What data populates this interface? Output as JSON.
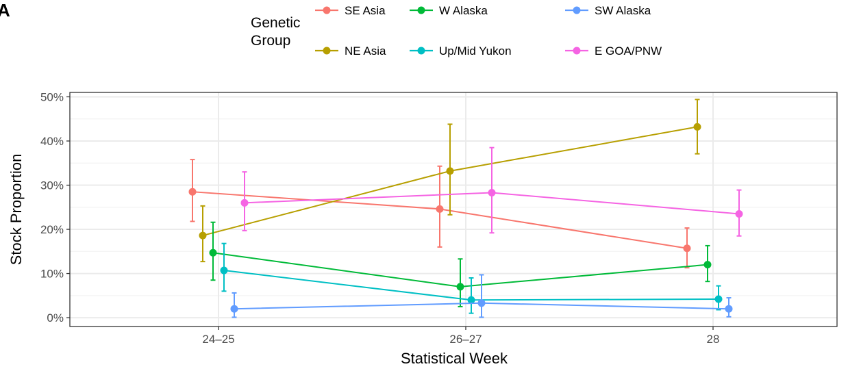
{
  "panel_tag": "A",
  "legend": {
    "title_line1": "Genetic",
    "title_line2": "Group"
  },
  "colors": {
    "SE Asia": "#F8766D",
    "NE Asia": "#B79F00",
    "W Alaska": "#00BA38",
    "Up/Mid Yukon": "#00BFC4",
    "SW Alaska": "#619CFF",
    "E GOA/PNW": "#F564E3"
  },
  "chart_data": {
    "type": "line",
    "xlabel": "Statistical Week",
    "ylabel": "Stock Proportion",
    "categories": [
      "24–25",
      "26–27",
      "28"
    ],
    "ylim": [
      -0.02,
      0.51
    ],
    "yticks": [
      0,
      0.1,
      0.2,
      0.3,
      0.4,
      0.5
    ],
    "ytick_labels": [
      "0%",
      "10%",
      "20%",
      "30%",
      "40%",
      "50%"
    ],
    "grid": true,
    "legend_position": "top",
    "series": [
      {
        "name": "SE Asia",
        "values": [
          0.285,
          0.246,
          0.157
        ],
        "lower": [
          0.218,
          0.16,
          0.113
        ],
        "upper": [
          0.358,
          0.343,
          0.203
        ]
      },
      {
        "name": "NE Asia",
        "values": [
          0.186,
          0.332,
          0.432
        ],
        "lower": [
          0.127,
          0.233,
          0.371
        ],
        "upper": [
          0.253,
          0.438,
          0.494
        ]
      },
      {
        "name": "W Alaska",
        "values": [
          0.147,
          0.07,
          0.12
        ],
        "lower": [
          0.085,
          0.025,
          0.082
        ],
        "upper": [
          0.216,
          0.133,
          0.163
        ]
      },
      {
        "name": "Up/Mid Yukon",
        "values": [
          0.107,
          0.04,
          0.042
        ],
        "lower": [
          0.06,
          0.01,
          0.018
        ],
        "upper": [
          0.168,
          0.09,
          0.072
        ]
      },
      {
        "name": "SW Alaska",
        "values": [
          0.02,
          0.033,
          0.02
        ],
        "lower": [
          0.001,
          0.001,
          0.002
        ],
        "upper": [
          0.056,
          0.097,
          0.045
        ]
      },
      {
        "name": "E GOA/PNW",
        "values": [
          0.26,
          0.283,
          0.235
        ],
        "lower": [
          0.197,
          0.192,
          0.185
        ],
        "upper": [
          0.33,
          0.385,
          0.289
        ]
      }
    ]
  }
}
